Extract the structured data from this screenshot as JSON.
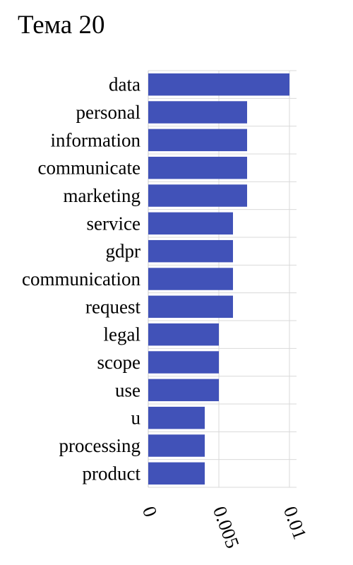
{
  "chart_data": {
    "type": "bar",
    "orientation": "horizontal",
    "title": "Тема 20",
    "xlabel": "",
    "ylabel": "",
    "categories": [
      "data",
      "personal",
      "information",
      "communicate",
      "marketing",
      "service",
      "gdpr",
      "communication",
      "request",
      "legal",
      "scope",
      "use",
      "u",
      "processing",
      "product"
    ],
    "values": [
      0.01,
      0.007,
      0.007,
      0.007,
      0.007,
      0.006,
      0.006,
      0.006,
      0.006,
      0.005,
      0.005,
      0.005,
      0.004,
      0.004,
      0.004
    ],
    "xlim": [
      0,
      0.0105
    ],
    "xticks": [
      0,
      0.005,
      0.01
    ],
    "xtick_labels": [
      "0",
      "0.005",
      "0.01"
    ],
    "grid": true,
    "legend": false,
    "bar_color": "#4152b8",
    "grid_color": "#d9d9d9"
  }
}
